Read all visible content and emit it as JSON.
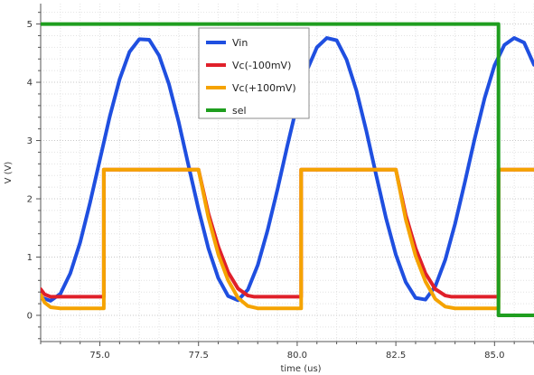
{
  "chart_data": {
    "type": "line",
    "xlabel": "time (us)",
    "ylabel": "V (V)",
    "xlim": [
      73.5,
      86.0
    ],
    "ylim": [
      -0.45,
      5.35
    ],
    "xticks": [
      75.0,
      77.5,
      80.0,
      82.5,
      85.0
    ],
    "xtick_labels": [
      "75.0",
      "77.5",
      "80.0",
      "82.5",
      "85.0"
    ],
    "yticks": [
      0,
      1,
      2,
      3,
      4,
      5
    ],
    "ytick_labels": [
      "0",
      "1",
      "2",
      "3",
      "4",
      "5"
    ],
    "grid": "dotted minor and major",
    "legend_position": "top-center",
    "series": [
      {
        "name": "Vin",
        "color": "#1f4fe0",
        "x": [
          73.5,
          73.75,
          74.0,
          74.25,
          74.5,
          74.75,
          75.0,
          75.25,
          75.5,
          75.75,
          76.0,
          76.25,
          76.5,
          76.75,
          77.0,
          77.25,
          77.5,
          77.75,
          78.0,
          78.25,
          78.5,
          78.75,
          79.0,
          79.25,
          79.5,
          79.75,
          80.0,
          80.25,
          80.5,
          80.75,
          81.0,
          81.25,
          81.5,
          81.75,
          82.0,
          82.25,
          82.5,
          82.75,
          83.0,
          83.25,
          83.5,
          83.75,
          84.0,
          84.25,
          84.5,
          84.75,
          85.0,
          85.25,
          85.5,
          85.75,
          86.0
        ],
        "y": [
          0.31,
          0.25,
          0.37,
          0.72,
          1.25,
          1.93,
          2.67,
          3.41,
          4.05,
          4.52,
          4.74,
          4.73,
          4.46,
          3.97,
          3.31,
          2.56,
          1.82,
          1.15,
          0.64,
          0.33,
          0.26,
          0.44,
          0.86,
          1.46,
          2.16,
          2.91,
          3.62,
          4.21,
          4.6,
          4.76,
          4.72,
          4.39,
          3.86,
          3.17,
          2.41,
          1.67,
          1.04,
          0.57,
          0.3,
          0.27,
          0.5,
          0.95,
          1.57,
          2.29,
          3.04,
          3.73,
          4.29,
          4.64,
          4.76,
          4.68,
          4.3
        ]
      },
      {
        "name": "Vc(-100mV)",
        "color": "#e0202a",
        "x": [
          73.5,
          73.6,
          73.75,
          74.0,
          74.5,
          75.1,
          75.1,
          77.5,
          77.75,
          78.0,
          78.25,
          78.5,
          78.75,
          78.9,
          80.1,
          80.1,
          82.5,
          82.75,
          83.0,
          83.25,
          83.5,
          83.75,
          83.9,
          85.1,
          85.1,
          86.0
        ],
        "y": [
          0.45,
          0.36,
          0.32,
          0.32,
          0.32,
          0.32,
          2.5,
          2.5,
          1.75,
          1.18,
          0.74,
          0.46,
          0.34,
          0.32,
          0.32,
          2.5,
          2.5,
          1.72,
          1.15,
          0.72,
          0.45,
          0.34,
          0.32,
          0.32,
          2.5,
          2.5
        ]
      },
      {
        "name": "Vc(+100mV)",
        "color": "#f5a300",
        "x": [
          73.5,
          73.6,
          73.75,
          74.0,
          74.5,
          75.1,
          75.1,
          77.5,
          77.75,
          78.0,
          78.25,
          78.5,
          78.75,
          79.0,
          80.1,
          80.1,
          82.5,
          82.75,
          83.0,
          83.25,
          83.5,
          83.75,
          84.0,
          85.1,
          85.1,
          86.0
        ],
        "y": [
          0.35,
          0.22,
          0.14,
          0.12,
          0.12,
          0.12,
          2.5,
          2.5,
          1.68,
          1.05,
          0.6,
          0.3,
          0.16,
          0.12,
          0.12,
          2.5,
          2.5,
          1.65,
          1.02,
          0.58,
          0.28,
          0.15,
          0.12,
          0.12,
          2.5,
          2.5
        ]
      },
      {
        "name": "sel",
        "color": "#1f9e1f",
        "x": [
          73.5,
          85.1,
          85.1,
          86.0
        ],
        "y": [
          5.0,
          5.0,
          0.0,
          0.0
        ]
      }
    ]
  }
}
